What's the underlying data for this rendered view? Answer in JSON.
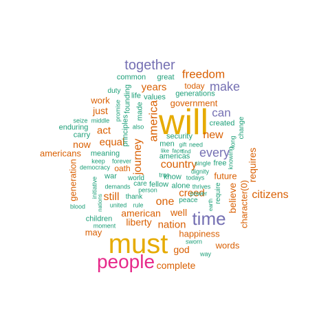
{
  "palette": {
    "orange": "#d95f02",
    "teal": "#1b9e77",
    "purple": "#7570b3",
    "magenta": "#e7298a",
    "gold": "#e6ab02"
  },
  "words": {
    "will": "will",
    "must": "must",
    "people": "people",
    "time": "time",
    "together": "together",
    "make": "make",
    "freedom": "freedom",
    "can": "can",
    "every": "every",
    "america": "america",
    "country": "country",
    "journey": "journey",
    "new": "new",
    "years": "years",
    "citizens": "citizens",
    "nation": "nation",
    "liberty": "liberty",
    "american": "american",
    "well": "well",
    "one": "one",
    "creed": "creed",
    "still": "still",
    "requires": "requires",
    "believe": "believe",
    "character0": "character(0)",
    "complete": "complete",
    "god": "god",
    "words": "words",
    "happiness": "happiness",
    "generation": "generation",
    "americans": "americans",
    "now": "now",
    "equal": "equal",
    "act": "act",
    "just": "just",
    "work": "work",
    "government": "government",
    "today": "today",
    "generations": "generations",
    "great": "great",
    "common": "common",
    "may": "may",
    "children": "children",
    "future": "future",
    "security": "security",
    "created": "created",
    "values": "values",
    "life": "life",
    "founding": "founding",
    "principles": "principles",
    "made": "made",
    "duty": "duty",
    "promise": "promise",
    "seize": "seize",
    "middle": "middle",
    "enduring": "enduring",
    "carry": "carry",
    "also": "also",
    "meaning": "meaning",
    "keep": "keep",
    "forever": "forever",
    "democracy": "democracy",
    "oath": "oath",
    "war": "war",
    "world": "world",
    "initiative": "initiative",
    "demands": "demands",
    "care": "care",
    "fellow": "fellow",
    "person": "person",
    "thank": "thank",
    "united": "united",
    "rule": "rule",
    "nations": "nations",
    "blood": "blood",
    "moment": "moment",
    "men": "men",
    "americas": "americas",
    "like": "like",
    "face": "face",
    "gift": "gift",
    "need": "need",
    "true": "true",
    "know": "know",
    "todays": "todays",
    "alone": "alone",
    "thrives": "thrives",
    "power": "power",
    "peace": "peace",
    "require": "require",
    "single": "single",
    "free": "free",
    "dignity": "dignity",
    "find": "find",
    "long": "long",
    "knowing": "knowing",
    "change": "change",
    "earth": "earth",
    "sworn": "sworn",
    "way": "way"
  }
}
